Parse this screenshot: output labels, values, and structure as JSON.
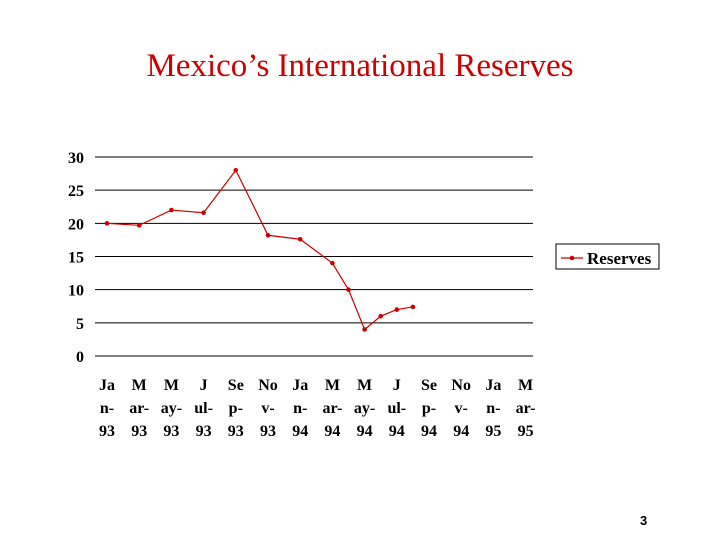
{
  "slide": {
    "title": "Mexico’s International Reserves",
    "page_number": "3"
  },
  "colors": {
    "title": "#cc0000",
    "series_line": "#cc0000",
    "grid": "#000000"
  },
  "chart_data": {
    "type": "line",
    "title": "",
    "xlabel": "",
    "ylabel": "",
    "ylim": [
      0,
      30
    ],
    "yticks": [
      0,
      5,
      10,
      15,
      20,
      25,
      30
    ],
    "grid": "horizontal",
    "legend_position": "right",
    "categories": [
      [
        "Ja",
        "n-",
        "93"
      ],
      [
        "M",
        "ar-",
        "93"
      ],
      [
        "M",
        "ay-",
        "93"
      ],
      [
        "J",
        "ul-",
        "93"
      ],
      [
        "Se",
        "p-",
        "93"
      ],
      [
        "No",
        "v-",
        "93"
      ],
      [
        "Ja",
        "n-",
        "94"
      ],
      [
        "M",
        "ar-",
        "94"
      ],
      [
        "M",
        "ay-",
        "94"
      ],
      [
        "J",
        "ul-",
        "94"
      ],
      [
        "Se",
        "p-",
        "94"
      ],
      [
        "No",
        "v-",
        "94"
      ],
      [
        "Ja",
        "n-",
        "95"
      ],
      [
        "M",
        "ar-",
        "95"
      ]
    ],
    "series": [
      {
        "name": "Reserves",
        "points": [
          {
            "x": 0,
            "y": 20.0
          },
          {
            "x": 1,
            "y": 19.7
          },
          {
            "x": 2,
            "y": 22.0
          },
          {
            "x": 3,
            "y": 21.6
          },
          {
            "x": 4,
            "y": 28.0
          },
          {
            "x": 5,
            "y": 18.2
          },
          {
            "x": 6,
            "y": 17.6
          },
          {
            "x": 7,
            "y": 14.0
          },
          {
            "x": 7.5,
            "y": 10.0
          },
          {
            "x": 8,
            "y": 4.0
          },
          {
            "x": 8.5,
            "y": 6.0
          },
          {
            "x": 9,
            "y": 7.0
          },
          {
            "x": 9.5,
            "y": 7.4
          }
        ]
      }
    ]
  }
}
